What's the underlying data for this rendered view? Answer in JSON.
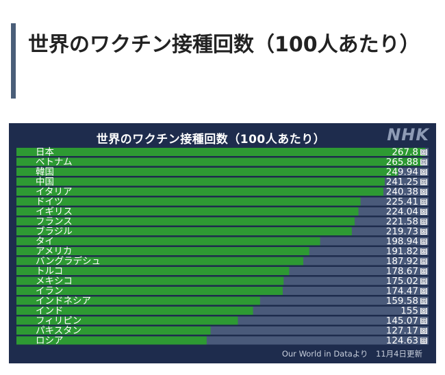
{
  "page": {
    "heading": "世界のワクチン接種回数（100人あたり）"
  },
  "chart_data": {
    "type": "bar",
    "orientation": "horizontal",
    "title": "世界のワクチン接種回数（100人あたり）",
    "logo": "NHK",
    "source": "Our World in Dataより　11月4日更新",
    "unit": "回",
    "xlim": [
      0,
      270
    ],
    "colors": {
      "bar": "#2e9a33",
      "track": "#4a5a7a",
      "background": "#1e2c4d"
    },
    "categories": [
      "日本",
      "ベトナム",
      "韓国",
      "中国",
      "イタリア",
      "ドイツ",
      "イギリス",
      "フランス",
      "ブラジル",
      "タイ",
      "アメリカ",
      "バングラデシュ",
      "トルコ",
      "メキシコ",
      "イラン",
      "インドネシア",
      "インド",
      "フィリピン",
      "パキスタン",
      "ロシア"
    ],
    "values": [
      267.8,
      265.88,
      249.94,
      241.25,
      240.38,
      225.41,
      224.04,
      221.58,
      219.73,
      198.94,
      191.82,
      187.92,
      178.67,
      175.02,
      174.47,
      159.58,
      155,
      145.07,
      127.17,
      124.63
    ],
    "value_labels": [
      "267.8",
      "265.88",
      "249.94",
      "241.25",
      "240.38",
      "225.41",
      "224.04",
      "221.58",
      "219.73",
      "198.94",
      "191.82",
      "187.92",
      "178.67",
      "175.02",
      "174.47",
      "159.58",
      "155",
      "145.07",
      "127.17",
      "124.63"
    ]
  }
}
